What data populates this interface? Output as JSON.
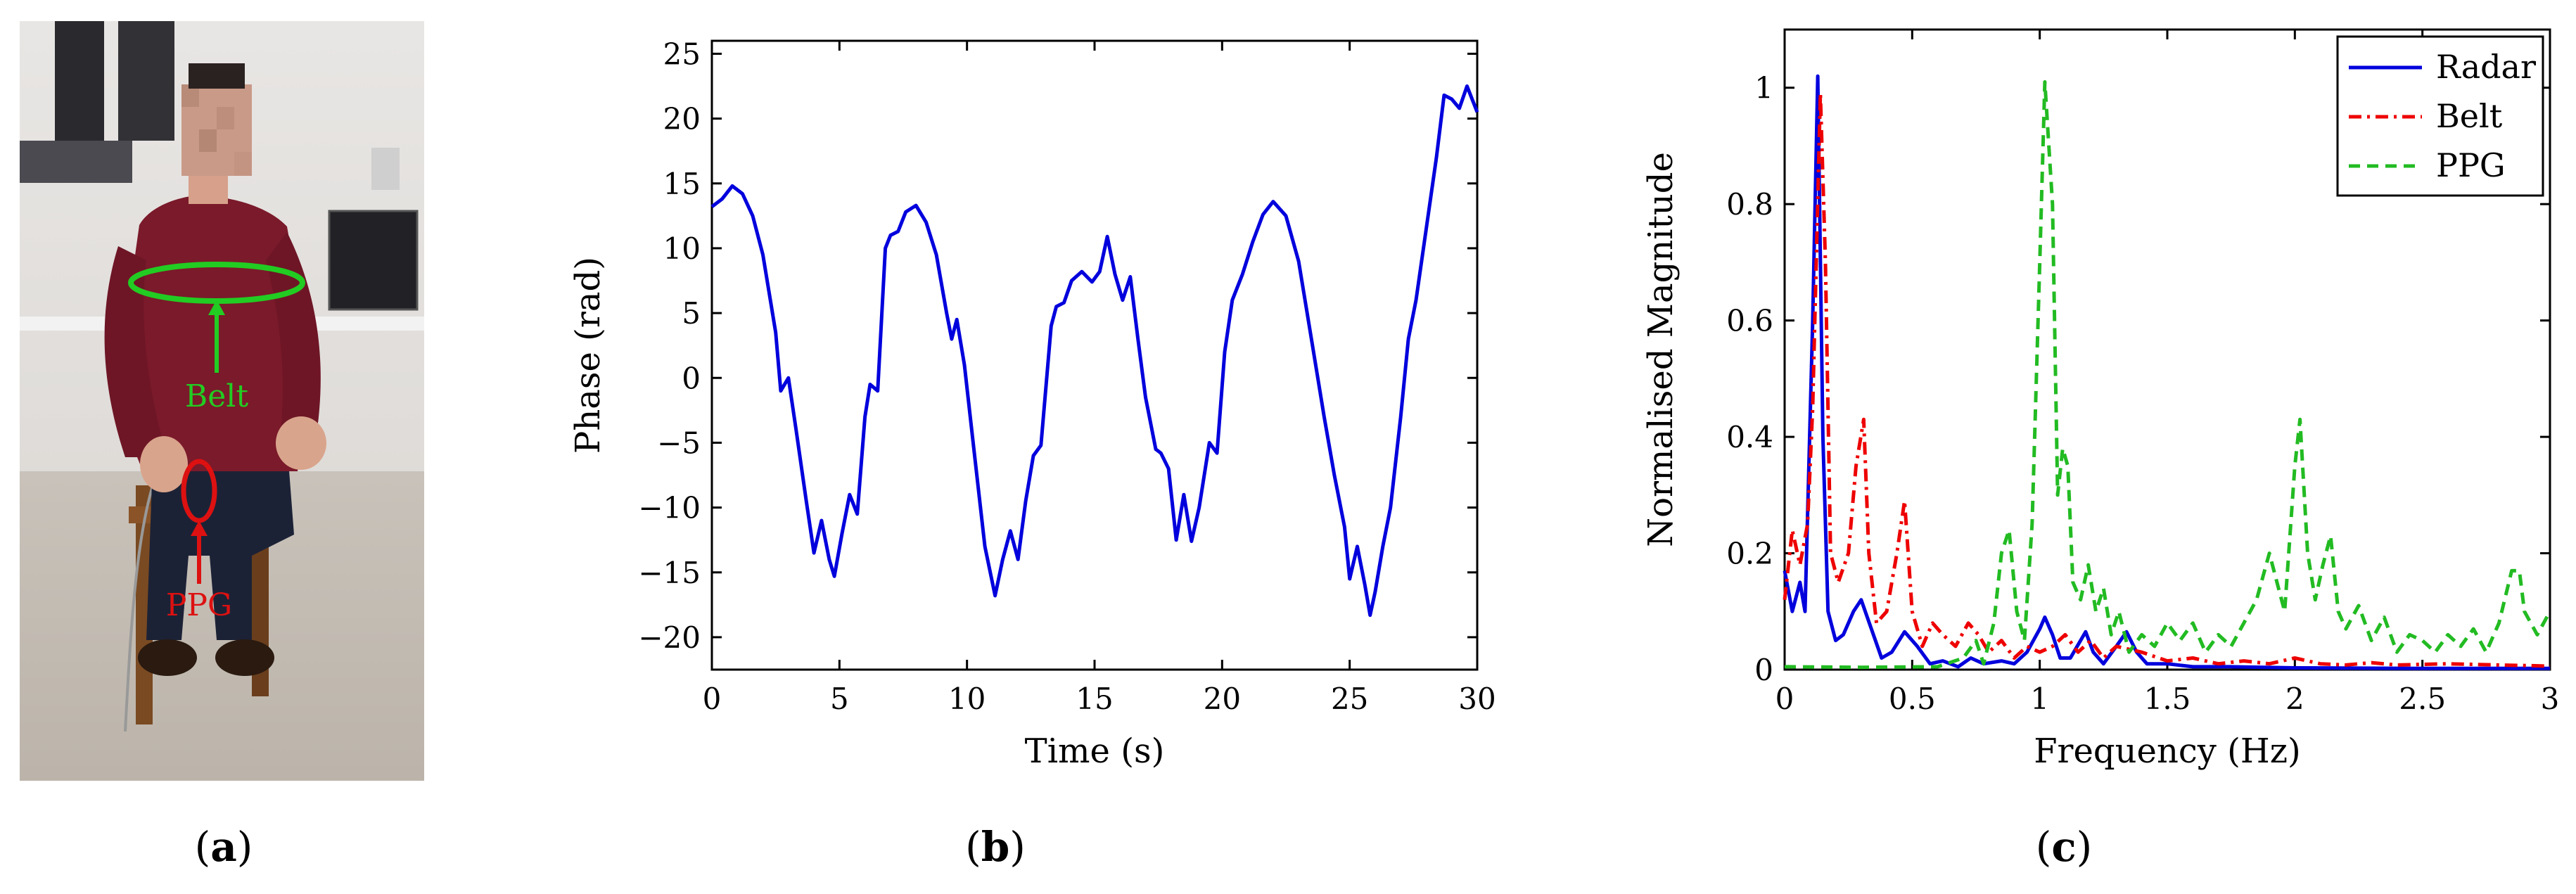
{
  "photo": {
    "belt_label": "Belt",
    "ppg_label": "PPG",
    "belt_color": "#22cc22",
    "ppg_color": "#dd1111"
  },
  "labels": {
    "a": "a",
    "b": "b",
    "c": "c"
  },
  "chart_data": [
    {
      "type": "line",
      "title": "",
      "xlabel": "Time (s)",
      "ylabel": "Phase (rad)",
      "xlim": [
        0,
        30
      ],
      "ylim": [
        -22.5,
        26
      ],
      "xticks": [
        0,
        5,
        10,
        15,
        20,
        25,
        30
      ],
      "yticks": [
        -20,
        -15,
        -10,
        -5,
        0,
        5,
        10,
        15,
        20,
        25
      ],
      "grid": false,
      "series": [
        {
          "color": "#0000dd",
          "points": [
            [
              0,
              13.2
            ],
            [
              0.4,
              13.8
            ],
            [
              0.8,
              14.8
            ],
            [
              1.2,
              14.2
            ],
            [
              1.6,
              12.5
            ],
            [
              2.0,
              9.5
            ],
            [
              2.5,
              3.5
            ],
            [
              2.7,
              -1.0
            ],
            [
              3.0,
              0
            ],
            [
              3.3,
              -4
            ],
            [
              3.7,
              -9.5
            ],
            [
              4.0,
              -13.5
            ],
            [
              4.3,
              -11
            ],
            [
              4.6,
              -14
            ],
            [
              4.8,
              -15.3
            ],
            [
              5.1,
              -12
            ],
            [
              5.4,
              -9
            ],
            [
              5.7,
              -10.5
            ],
            [
              6.0,
              -3
            ],
            [
              6.2,
              -0.5
            ],
            [
              6.5,
              -1
            ],
            [
              6.8,
              10
            ],
            [
              7.0,
              11
            ],
            [
              7.3,
              11.3
            ],
            [
              7.6,
              12.8
            ],
            [
              8.0,
              13.3
            ],
            [
              8.4,
              12
            ],
            [
              8.8,
              9.5
            ],
            [
              9.2,
              5
            ],
            [
              9.4,
              3
            ],
            [
              9.6,
              4.5
            ],
            [
              9.9,
              1
            ],
            [
              10.3,
              -6
            ],
            [
              10.7,
              -13
            ],
            [
              11.1,
              -16.8
            ],
            [
              11.4,
              -14
            ],
            [
              11.7,
              -11.8
            ],
            [
              12.0,
              -14
            ],
            [
              12.3,
              -9.5
            ],
            [
              12.6,
              -6
            ],
            [
              12.9,
              -5.2
            ],
            [
              13.3,
              4
            ],
            [
              13.5,
              5.5
            ],
            [
              13.8,
              5.8
            ],
            [
              14.1,
              7.5
            ],
            [
              14.5,
              8.2
            ],
            [
              14.9,
              7.4
            ],
            [
              15.2,
              8.2
            ],
            [
              15.5,
              10.9
            ],
            [
              15.8,
              8
            ],
            [
              16.1,
              6
            ],
            [
              16.4,
              7.8
            ],
            [
              16.7,
              3
            ],
            [
              17.0,
              -1.5
            ],
            [
              17.4,
              -5.5
            ],
            [
              17.6,
              -5.8
            ],
            [
              17.9,
              -7
            ],
            [
              18.2,
              -12.5
            ],
            [
              18.5,
              -9
            ],
            [
              18.8,
              -12.6
            ],
            [
              19.1,
              -10
            ],
            [
              19.5,
              -5
            ],
            [
              19.8,
              -5.8
            ],
            [
              20.1,
              2
            ],
            [
              20.4,
              6
            ],
            [
              20.8,
              8
            ],
            [
              21.2,
              10.5
            ],
            [
              21.6,
              12.6
            ],
            [
              22.0,
              13.6
            ],
            [
              22.5,
              12.5
            ],
            [
              23.0,
              9
            ],
            [
              23.5,
              3
            ],
            [
              24.0,
              -3
            ],
            [
              24.4,
              -7.5
            ],
            [
              24.8,
              -11.5
            ],
            [
              25.0,
              -15.5
            ],
            [
              25.3,
              -13
            ],
            [
              25.6,
              -16
            ],
            [
              25.8,
              -18.3
            ],
            [
              26.0,
              -16.5
            ],
            [
              26.3,
              -13
            ],
            [
              26.6,
              -10
            ],
            [
              27.0,
              -3
            ],
            [
              27.3,
              3
            ],
            [
              27.6,
              6
            ],
            [
              28.0,
              11.5
            ],
            [
              28.4,
              17
            ],
            [
              28.7,
              21.8
            ],
            [
              29.0,
              21.5
            ],
            [
              29.3,
              20.8
            ],
            [
              29.6,
              22.5
            ],
            [
              30.0,
              20.5
            ]
          ]
        }
      ]
    },
    {
      "type": "line",
      "title": "",
      "xlabel": "Frequency (Hz)",
      "ylabel": "Normalised Magnitude",
      "xlim": [
        0,
        3
      ],
      "ylim": [
        0,
        1.1
      ],
      "xticks": [
        0,
        0.5,
        1,
        1.5,
        2,
        2.5,
        3
      ],
      "yticks": [
        0,
        0.2,
        0.4,
        0.6,
        0.8,
        1
      ],
      "grid": false,
      "legend": "top-right",
      "series": [
        {
          "name": "Radar",
          "color": "#0000dd",
          "dash": "solid",
          "points": [
            [
              0,
              0.17
            ],
            [
              0.03,
              0.1
            ],
            [
              0.06,
              0.15
            ],
            [
              0.08,
              0.1
            ],
            [
              0.11,
              0.6
            ],
            [
              0.13,
              1.02
            ],
            [
              0.15,
              0.4
            ],
            [
              0.17,
              0.1
            ],
            [
              0.2,
              0.05
            ],
            [
              0.23,
              0.06
            ],
            [
              0.27,
              0.1
            ],
            [
              0.3,
              0.12
            ],
            [
              0.34,
              0.07
            ],
            [
              0.38,
              0.02
            ],
            [
              0.42,
              0.03
            ],
            [
              0.47,
              0.065
            ],
            [
              0.52,
              0.04
            ],
            [
              0.57,
              0.01
            ],
            [
              0.62,
              0.015
            ],
            [
              0.68,
              0.005
            ],
            [
              0.73,
              0.02
            ],
            [
              0.78,
              0.01
            ],
            [
              0.85,
              0.015
            ],
            [
              0.9,
              0.01
            ],
            [
              0.95,
              0.03
            ],
            [
              1.0,
              0.07
            ],
            [
              1.02,
              0.09
            ],
            [
              1.05,
              0.06
            ],
            [
              1.08,
              0.02
            ],
            [
              1.12,
              0.02
            ],
            [
              1.18,
              0.065
            ],
            [
              1.21,
              0.03
            ],
            [
              1.25,
              0.01
            ],
            [
              1.3,
              0.04
            ],
            [
              1.34,
              0.065
            ],
            [
              1.38,
              0.03
            ],
            [
              1.42,
              0.01
            ],
            [
              1.5,
              0.01
            ],
            [
              1.6,
              0.005
            ],
            [
              1.75,
              0.005
            ],
            [
              2.0,
              0.003
            ],
            [
              2.5,
              0.002
            ],
            [
              3.0,
              0.002
            ]
          ]
        },
        {
          "name": "Belt",
          "color": "#ee0000",
          "dash": "dashdot",
          "points": [
            [
              0,
              0.12
            ],
            [
              0.03,
              0.24
            ],
            [
              0.06,
              0.18
            ],
            [
              0.09,
              0.25
            ],
            [
              0.11,
              0.45
            ],
            [
              0.14,
              0.99
            ],
            [
              0.16,
              0.7
            ],
            [
              0.18,
              0.2
            ],
            [
              0.21,
              0.15
            ],
            [
              0.25,
              0.2
            ],
            [
              0.28,
              0.35
            ],
            [
              0.31,
              0.43
            ],
            [
              0.33,
              0.2
            ],
            [
              0.36,
              0.08
            ],
            [
              0.4,
              0.1
            ],
            [
              0.44,
              0.2
            ],
            [
              0.47,
              0.29
            ],
            [
              0.5,
              0.1
            ],
            [
              0.54,
              0.04
            ],
            [
              0.58,
              0.08
            ],
            [
              0.62,
              0.06
            ],
            [
              0.67,
              0.04
            ],
            [
              0.72,
              0.08
            ],
            [
              0.76,
              0.06
            ],
            [
              0.8,
              0.03
            ],
            [
              0.85,
              0.05
            ],
            [
              0.9,
              0.02
            ],
            [
              0.95,
              0.04
            ],
            [
              1.0,
              0.03
            ],
            [
              1.05,
              0.04
            ],
            [
              1.1,
              0.06
            ],
            [
              1.15,
              0.03
            ],
            [
              1.2,
              0.05
            ],
            [
              1.25,
              0.02
            ],
            [
              1.3,
              0.04
            ],
            [
              1.4,
              0.03
            ],
            [
              1.5,
              0.015
            ],
            [
              1.6,
              0.02
            ],
            [
              1.7,
              0.01
            ],
            [
              1.8,
              0.015
            ],
            [
              1.9,
              0.01
            ],
            [
              2.0,
              0.02
            ],
            [
              2.1,
              0.01
            ],
            [
              2.2,
              0.008
            ],
            [
              2.3,
              0.012
            ],
            [
              2.4,
              0.008
            ],
            [
              2.6,
              0.01
            ],
            [
              2.8,
              0.008
            ],
            [
              3.0,
              0.006
            ]
          ]
        },
        {
          "name": "PPG",
          "color": "#22bb22",
          "dash": "dashed",
          "points": [
            [
              0,
              0.005
            ],
            [
              0.3,
              0.004
            ],
            [
              0.6,
              0.005
            ],
            [
              0.7,
              0.02
            ],
            [
              0.75,
              0.05
            ],
            [
              0.78,
              0.01
            ],
            [
              0.82,
              0.08
            ],
            [
              0.85,
              0.2
            ],
            [
              0.88,
              0.24
            ],
            [
              0.91,
              0.1
            ],
            [
              0.94,
              0.05
            ],
            [
              0.97,
              0.25
            ],
            [
              1.0,
              0.7
            ],
            [
              1.02,
              1.01
            ],
            [
              1.05,
              0.8
            ],
            [
              1.07,
              0.3
            ],
            [
              1.09,
              0.38
            ],
            [
              1.11,
              0.35
            ],
            [
              1.13,
              0.15
            ],
            [
              1.16,
              0.12
            ],
            [
              1.19,
              0.18
            ],
            [
              1.22,
              0.1
            ],
            [
              1.25,
              0.14
            ],
            [
              1.28,
              0.06
            ],
            [
              1.31,
              0.1
            ],
            [
              1.35,
              0.03
            ],
            [
              1.4,
              0.06
            ],
            [
              1.45,
              0.04
            ],
            [
              1.5,
              0.08
            ],
            [
              1.55,
              0.05
            ],
            [
              1.6,
              0.08
            ],
            [
              1.65,
              0.03
            ],
            [
              1.7,
              0.06
            ],
            [
              1.75,
              0.04
            ],
            [
              1.8,
              0.08
            ],
            [
              1.85,
              0.12
            ],
            [
              1.9,
              0.2
            ],
            [
              1.93,
              0.15
            ],
            [
              1.96,
              0.1
            ],
            [
              2.0,
              0.35
            ],
            [
              2.02,
              0.43
            ],
            [
              2.05,
              0.2
            ],
            [
              2.08,
              0.12
            ],
            [
              2.11,
              0.18
            ],
            [
              2.14,
              0.23
            ],
            [
              2.17,
              0.1
            ],
            [
              2.2,
              0.07
            ],
            [
              2.25,
              0.11
            ],
            [
              2.3,
              0.05
            ],
            [
              2.35,
              0.09
            ],
            [
              2.4,
              0.03
            ],
            [
              2.45,
              0.06
            ],
            [
              2.5,
              0.05
            ],
            [
              2.55,
              0.03
            ],
            [
              2.6,
              0.06
            ],
            [
              2.65,
              0.04
            ],
            [
              2.7,
              0.07
            ],
            [
              2.75,
              0.03
            ],
            [
              2.8,
              0.08
            ],
            [
              2.85,
              0.17
            ],
            [
              2.88,
              0.17
            ],
            [
              2.9,
              0.1
            ],
            [
              2.95,
              0.06
            ],
            [
              3.0,
              0.1
            ]
          ]
        }
      ]
    }
  ]
}
